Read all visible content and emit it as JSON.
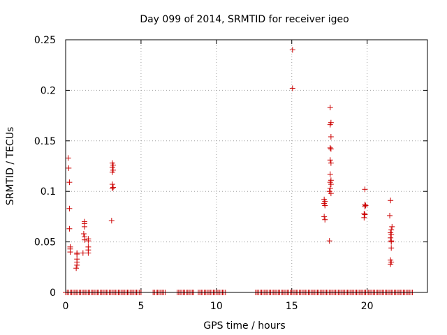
{
  "chart_data": {
    "type": "scatter",
    "title": "Day 099 of 2014, SRMTID for receiver igeo",
    "xlabel": "GPS time / hours",
    "ylabel": "SRMTID / TECUs",
    "xlim": [
      0,
      24
    ],
    "ylim": [
      0,
      0.25
    ],
    "xticks": [
      0,
      5,
      10,
      15,
      20
    ],
    "xtick_labels": [
      "0",
      "5",
      "10",
      "15",
      "20"
    ],
    "yticks": [
      0,
      0.05,
      0.1,
      0.15,
      0.2,
      0.25
    ],
    "ytick_labels": [
      "0",
      "0.05",
      "0.1",
      "0.15",
      "0.2",
      "0.25"
    ],
    "grid": true,
    "marker": "+",
    "series": [
      {
        "name": "SRMTID",
        "color": "#cc0000",
        "points": [
          [
            0.17,
            0.133
          ],
          [
            0.2,
            0.123
          ],
          [
            0.25,
            0.109
          ],
          [
            0.25,
            0.083
          ],
          [
            0.25,
            0.063
          ],
          [
            0.3,
            0.045
          ],
          [
            0.3,
            0.043
          ],
          [
            0.3,
            0.04
          ],
          [
            0.75,
            0.039
          ],
          [
            0.75,
            0.038
          ],
          [
            0.75,
            0.033
          ],
          [
            0.75,
            0.03
          ],
          [
            0.75,
            0.027
          ],
          [
            0.7,
            0.024
          ],
          [
            1.25,
            0.07
          ],
          [
            1.25,
            0.068
          ],
          [
            1.25,
            0.065
          ],
          [
            1.2,
            0.058
          ],
          [
            1.25,
            0.055
          ],
          [
            1.25,
            0.052
          ],
          [
            1.15,
            0.039
          ],
          [
            1.5,
            0.053
          ],
          [
            1.5,
            0.051
          ],
          [
            1.5,
            0.045
          ],
          [
            1.5,
            0.042
          ],
          [
            1.5,
            0.039
          ],
          [
            3.1,
            0.128
          ],
          [
            3.15,
            0.126
          ],
          [
            3.1,
            0.124
          ],
          [
            3.15,
            0.121
          ],
          [
            3.1,
            0.119
          ],
          [
            3.1,
            0.107
          ],
          [
            3.15,
            0.104
          ],
          [
            3.1,
            0.103
          ],
          [
            3.05,
            0.071
          ],
          [
            15.05,
            0.24
          ],
          [
            15.05,
            0.202
          ],
          [
            17.15,
            0.092
          ],
          [
            17.2,
            0.09
          ],
          [
            17.15,
            0.088
          ],
          [
            17.2,
            0.086
          ],
          [
            17.15,
            0.075
          ],
          [
            17.2,
            0.072
          ],
          [
            17.55,
            0.183
          ],
          [
            17.6,
            0.168
          ],
          [
            17.55,
            0.166
          ],
          [
            17.6,
            0.154
          ],
          [
            17.55,
            0.143
          ],
          [
            17.6,
            0.142
          ],
          [
            17.55,
            0.131
          ],
          [
            17.6,
            0.128
          ],
          [
            17.55,
            0.117
          ],
          [
            17.6,
            0.111
          ],
          [
            17.55,
            0.109
          ],
          [
            17.6,
            0.107
          ],
          [
            17.55,
            0.103
          ],
          [
            17.5,
            0.1
          ],
          [
            17.6,
            0.098
          ],
          [
            17.5,
            0.051
          ],
          [
            19.85,
            0.102
          ],
          [
            19.85,
            0.087
          ],
          [
            19.9,
            0.086
          ],
          [
            19.85,
            0.085
          ],
          [
            19.8,
            0.078
          ],
          [
            19.85,
            0.077
          ],
          [
            19.8,
            0.074
          ],
          [
            21.55,
            0.091
          ],
          [
            21.5,
            0.076
          ],
          [
            21.65,
            0.065
          ],
          [
            21.6,
            0.062
          ],
          [
            21.55,
            0.059
          ],
          [
            21.6,
            0.057
          ],
          [
            21.55,
            0.054
          ],
          [
            21.6,
            0.051
          ],
          [
            21.6,
            0.05
          ],
          [
            21.6,
            0.044
          ],
          [
            21.55,
            0.032
          ],
          [
            21.6,
            0.03
          ],
          [
            21.55,
            0.028
          ]
        ],
        "zero_value_segments": [
          [
            0.0,
            5.0
          ],
          [
            5.8,
            6.6
          ],
          [
            7.4,
            8.5
          ],
          [
            8.8,
            9.8
          ],
          [
            9.9,
            10.6
          ],
          [
            12.6,
            13.6
          ],
          [
            13.7,
            23.0
          ]
        ],
        "zero_value_step": 0.1,
        "zero_value_y": 0
      }
    ]
  }
}
